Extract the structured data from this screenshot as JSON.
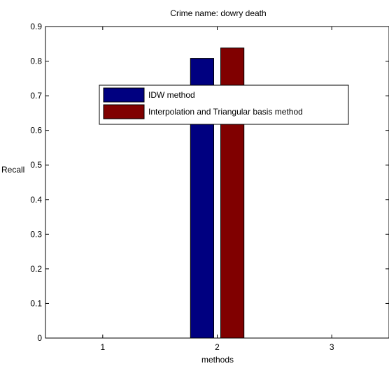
{
  "chart_data": {
    "type": "bar",
    "title": "Crime name: dowry death",
    "xlabel": "methods",
    "ylabel": "Recall",
    "categories": [
      "1",
      "2",
      "3"
    ],
    "ylim": [
      0,
      0.9
    ],
    "yticks": [
      "0",
      "0.1",
      "0.2",
      "0.3",
      "0.4",
      "0.5",
      "0.6",
      "0.7",
      "0.8",
      "0.9"
    ],
    "grid": false,
    "legend_position": "upper-center",
    "series": [
      {
        "name": "IDW method",
        "color": "#000080",
        "values": [
          0,
          0.808,
          0
        ]
      },
      {
        "name": "Interpolation and Triangular basis method",
        "color": "#800000",
        "values": [
          0,
          0.838,
          0
        ]
      }
    ]
  }
}
